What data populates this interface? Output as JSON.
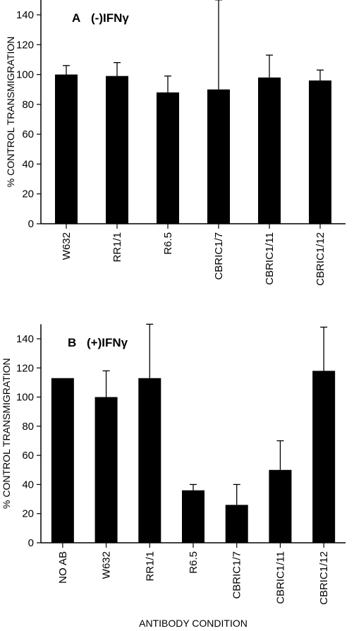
{
  "chart_data": [
    {
      "type": "bar",
      "panel_label": "A",
      "title": "(-)IFNγ",
      "ylabel": "% CONTROL TRANSMIGRATION",
      "xlabel": "",
      "ylim": [
        0,
        150
      ],
      "yticks": [
        0,
        20,
        40,
        60,
        80,
        100,
        120,
        140
      ],
      "grid": false,
      "categories": [
        "W632",
        "RR1/1",
        "R6.5",
        "CBRIC1/7",
        "CBRIC1/11",
        "CBRIC1/12"
      ],
      "values": [
        100,
        99,
        88,
        90,
        98,
        96
      ],
      "error_upper": [
        106,
        108,
        99,
        150,
        113,
        103
      ],
      "bar_color": "#000000"
    },
    {
      "type": "bar",
      "panel_label": "B",
      "title": "(+)IFNγ",
      "ylabel": "% CONTROL TRANSMIGRATION",
      "xlabel": "ANTIBODY CONDITION",
      "ylim": [
        0,
        150
      ],
      "yticks": [
        0,
        20,
        40,
        60,
        80,
        100,
        120,
        140
      ],
      "grid": false,
      "categories": [
        "NO AB",
        "W632",
        "RR1/1",
        "R6.5",
        "CBRIC1/7",
        "CBRIC1/11",
        "CBRIC1/12"
      ],
      "values": [
        113,
        100,
        113,
        36,
        26,
        50,
        118
      ],
      "error_upper": [
        null,
        118,
        150,
        40,
        40,
        70,
        148
      ],
      "bar_color": "#000000"
    }
  ]
}
